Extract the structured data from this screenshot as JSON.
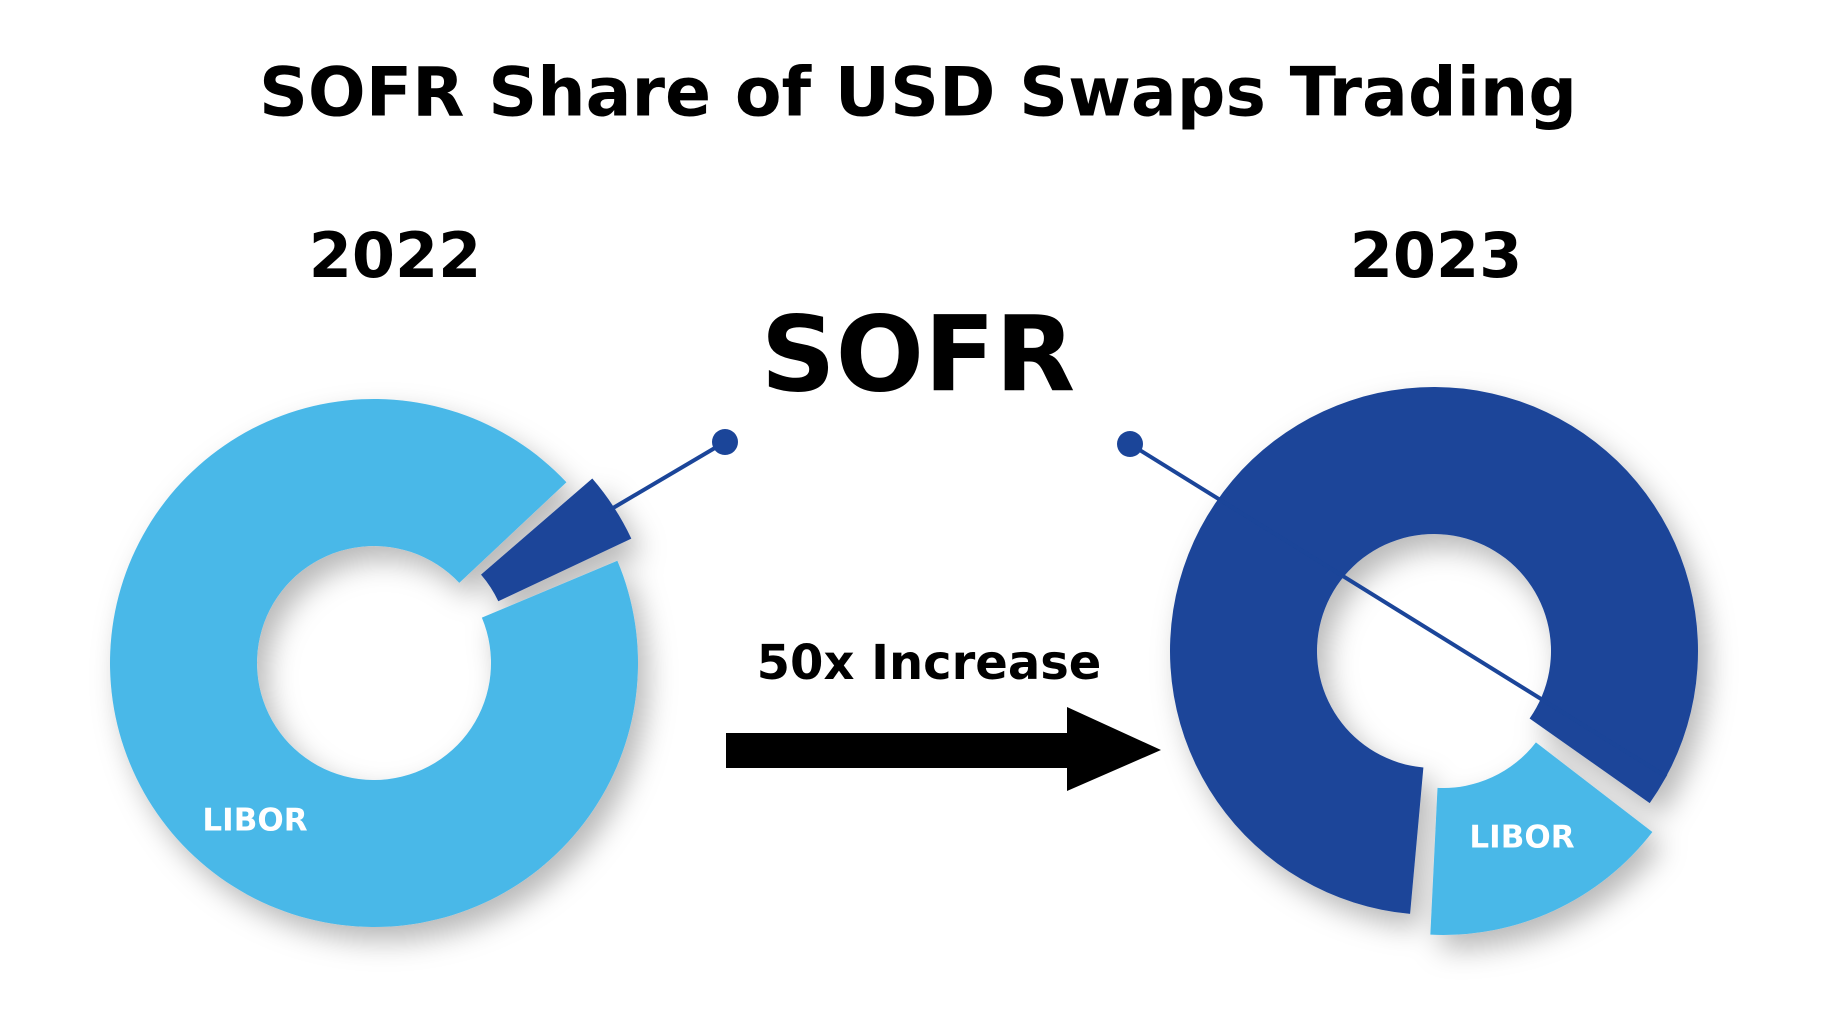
{
  "title": "SOFR Share of USD Swaps Trading",
  "annotation": "50x Increase",
  "chart_data": [
    {
      "type": "donut",
      "title": "2022",
      "categories": [
        "SOFR",
        "LIBOR"
      ],
      "values": [
        5,
        95
      ],
      "colors": [
        "#1b4599",
        "#4ab8e8"
      ]
    },
    {
      "type": "donut",
      "title": "2023",
      "categories": [
        "SOFR",
        "LIBOR"
      ],
      "values": [
        84,
        16
      ],
      "colors": [
        "#1b4599",
        "#4ab8e8"
      ]
    }
  ]
}
